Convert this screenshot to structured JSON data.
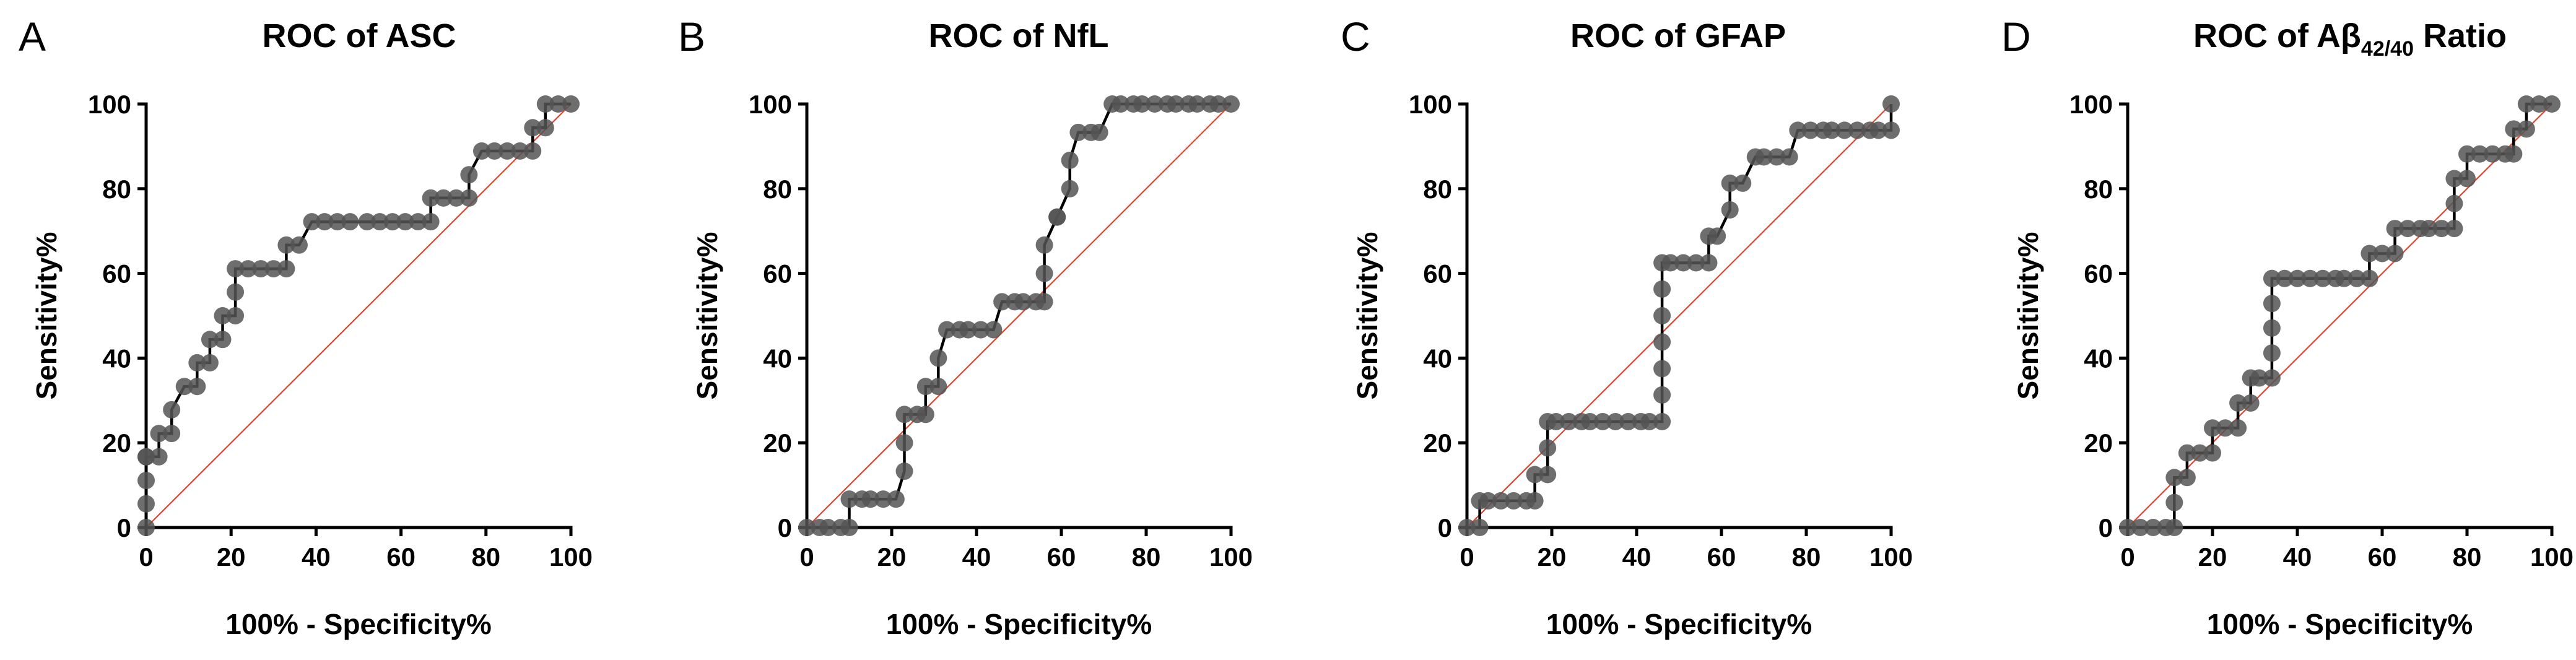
{
  "figure": {
    "colors": {
      "curve": "#000000",
      "points": "#555555",
      "reference_line": "#e0442c",
      "axis": "#000000"
    }
  },
  "chart_data": [
    {
      "panel": "A",
      "type": "line",
      "title_main": "ROC of ASC",
      "title_sub": "",
      "title_suffix": "",
      "xlabel": "100% - Specificity%",
      "ylabel": "Sensitivity%",
      "xlim": [
        0,
        100
      ],
      "ylim": [
        0,
        100
      ],
      "xticks": [
        0,
        20,
        40,
        60,
        80,
        100
      ],
      "yticks": [
        0,
        20,
        40,
        60,
        80,
        100
      ],
      "x": [
        0,
        0,
        0,
        0,
        0,
        3,
        3,
        6,
        6,
        9,
        12,
        12,
        15,
        15,
        18,
        18,
        21,
        21,
        21,
        24,
        27,
        30,
        33,
        33,
        36,
        39,
        42,
        45,
        48,
        52,
        55,
        58,
        61,
        64,
        67,
        67,
        70,
        73,
        76,
        76,
        79,
        82,
        85,
        88,
        91,
        91,
        94,
        94,
        97,
        100
      ],
      "y": [
        0,
        5.6,
        11.1,
        16.7,
        16.7,
        16.7,
        22.2,
        22.2,
        27.8,
        33.3,
        33.3,
        38.9,
        38.9,
        44.4,
        44.4,
        50,
        50,
        55.6,
        61.1,
        61.1,
        61.1,
        61.1,
        61.1,
        66.7,
        66.7,
        72.2,
        72.2,
        72.2,
        72.2,
        72.2,
        72.2,
        72.2,
        72.2,
        72.2,
        72.2,
        77.8,
        77.8,
        77.8,
        77.8,
        83.3,
        88.9,
        88.9,
        88.9,
        88.9,
        88.9,
        94.4,
        94.4,
        100,
        100,
        100
      ],
      "reference_line": [
        [
          0,
          0
        ],
        [
          100,
          100
        ]
      ]
    },
    {
      "panel": "B",
      "type": "line",
      "title_main": "ROC of NfL",
      "title_sub": "",
      "title_suffix": "",
      "xlabel": "100% - Specificity%",
      "ylabel": "Sensitivity%",
      "xlim": [
        0,
        100
      ],
      "ylim": [
        0,
        100
      ],
      "xticks": [
        0,
        20,
        40,
        60,
        80,
        100
      ],
      "yticks": [
        0,
        20,
        40,
        60,
        80,
        100
      ],
      "x": [
        0,
        3,
        5,
        8,
        10,
        10,
        13,
        15,
        18,
        21,
        23,
        23,
        23,
        26,
        28,
        28,
        31,
        31,
        33,
        36,
        38,
        41,
        44,
        46,
        49,
        51,
        54,
        56,
        56,
        56,
        59,
        59,
        62,
        62,
        64,
        67,
        69,
        72,
        74,
        77,
        79,
        82,
        85,
        87,
        90,
        92,
        95,
        97,
        100
      ],
      "y": [
        0,
        0,
        0,
        0,
        0,
        6.7,
        6.7,
        6.7,
        6.7,
        6.7,
        13.3,
        20,
        26.7,
        26.7,
        26.7,
        33.3,
        33.3,
        40,
        46.7,
        46.7,
        46.7,
        46.7,
        46.7,
        53.3,
        53.3,
        53.3,
        53.3,
        53.3,
        60,
        66.7,
        73.3,
        73.3,
        80,
        86.7,
        93.3,
        93.3,
        93.3,
        100,
        100,
        100,
        100,
        100,
        100,
        100,
        100,
        100,
        100,
        100,
        100
      ],
      "reference_line": [
        [
          0,
          0
        ],
        [
          100,
          100
        ]
      ]
    },
    {
      "panel": "C",
      "type": "line",
      "title_main": "ROC of GFAP",
      "title_sub": "",
      "title_suffix": "",
      "xlabel": "100% - Specificity%",
      "ylabel": "Sensitivity%",
      "xlim": [
        0,
        100
      ],
      "ylim": [
        0,
        100
      ],
      "xticks": [
        0,
        20,
        40,
        60,
        80,
        100
      ],
      "yticks": [
        0,
        20,
        40,
        60,
        80,
        100
      ],
      "x": [
        0,
        3,
        3,
        5,
        8,
        11,
        14,
        16,
        16,
        19,
        19,
        19,
        21,
        24,
        27,
        29,
        32,
        35,
        38,
        41,
        43,
        46,
        46,
        46,
        46,
        46,
        46,
        46,
        48,
        51,
        54,
        57,
        57,
        59,
        62,
        62,
        65,
        68,
        70,
        73,
        76,
        78,
        81,
        84,
        86,
        89,
        92,
        95,
        97,
        100,
        100
      ],
      "y": [
        0,
        0,
        6.3,
        6.3,
        6.3,
        6.3,
        6.3,
        6.3,
        12.5,
        12.5,
        18.8,
        25,
        25,
        25,
        25,
        25,
        25,
        25,
        25,
        25,
        25,
        25,
        31.3,
        37.5,
        43.8,
        50,
        56.3,
        62.5,
        62.5,
        62.5,
        62.5,
        62.5,
        68.8,
        68.8,
        75,
        81.3,
        81.3,
        87.5,
        87.5,
        87.5,
        87.5,
        93.8,
        93.8,
        93.8,
        93.8,
        93.8,
        93.8,
        93.8,
        93.8,
        93.8,
        100
      ],
      "reference_line": [
        [
          0,
          0
        ],
        [
          100,
          100
        ]
      ]
    },
    {
      "panel": "D",
      "type": "line",
      "title_main": "ROC of Aβ",
      "title_sub": "42/40",
      "title_suffix": " Ratio",
      "xlabel": "100% - Specificity%",
      "ylabel": "Sensitivity%",
      "xlim": [
        0,
        100
      ],
      "ylim": [
        0,
        100
      ],
      "xticks": [
        0,
        20,
        40,
        60,
        80,
        100
      ],
      "yticks": [
        0,
        20,
        40,
        60,
        80,
        100
      ],
      "x": [
        0,
        3,
        6,
        9,
        11,
        11,
        11,
        14,
        14,
        17,
        20,
        20,
        23,
        26,
        26,
        29,
        29,
        31,
        34,
        34,
        34,
        34,
        34,
        37,
        40,
        43,
        46,
        49,
        51,
        54,
        57,
        57,
        60,
        63,
        63,
        66,
        69,
        71,
        74,
        77,
        77,
        77,
        80,
        80,
        83,
        86,
        89,
        91,
        91,
        94,
        94,
        97,
        100
      ],
      "y": [
        0,
        0,
        0,
        0,
        0,
        5.9,
        11.8,
        11.8,
        17.6,
        17.6,
        17.6,
        23.5,
        23.5,
        23.5,
        29.4,
        29.4,
        35.3,
        35.3,
        35.3,
        41.2,
        47.1,
        52.9,
        58.8,
        58.8,
        58.8,
        58.8,
        58.8,
        58.8,
        58.8,
        58.8,
        58.8,
        64.7,
        64.7,
        64.7,
        70.6,
        70.6,
        70.6,
        70.6,
        70.6,
        70.6,
        76.5,
        82.4,
        82.4,
        88.2,
        88.2,
        88.2,
        88.2,
        88.2,
        94.1,
        94.1,
        100,
        100,
        100
      ],
      "reference_line": [
        [
          0,
          0
        ],
        [
          100,
          100
        ]
      ]
    }
  ]
}
